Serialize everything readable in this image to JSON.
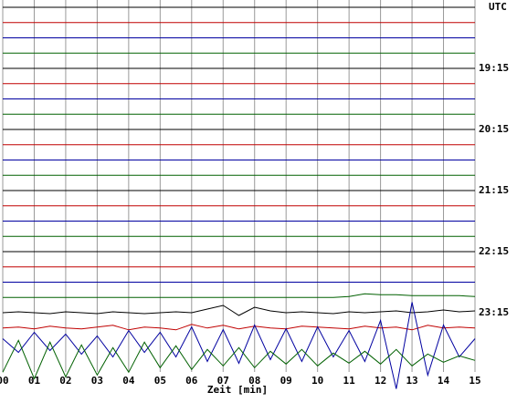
{
  "chart_data": {
    "type": "helicorder",
    "utc_label": "UTC",
    "hour_labels": [
      "19:15",
      "20:15",
      "21:15",
      "22:15",
      "23:15"
    ],
    "x_label": "Zeit [min]",
    "xlim": [
      0,
      15
    ],
    "xticks": [
      {
        "value": 0,
        "label": "00"
      },
      {
        "value": 1,
        "label": "01"
      },
      {
        "value": 2,
        "label": "02"
      },
      {
        "value": 3,
        "label": "03"
      },
      {
        "value": 4,
        "label": "04"
      },
      {
        "value": 5,
        "label": "05"
      },
      {
        "value": 6,
        "label": "06"
      },
      {
        "value": 7,
        "label": "07"
      },
      {
        "value": 8,
        "label": "08"
      },
      {
        "value": 9,
        "label": "09"
      },
      10,
      11,
      12,
      13,
      14,
      15
    ],
    "grid": true,
    "x": [
      0,
      0.5,
      1,
      1.5,
      2,
      2.5,
      3,
      3.5,
      4,
      4.5,
      5,
      5.5,
      6,
      6.5,
      7,
      7.5,
      8,
      8.5,
      9,
      9.5,
      10,
      10.5,
      11,
      11.5,
      12,
      12.5,
      13,
      13.5,
      14,
      14.5,
      15
    ],
    "series": [
      {
        "color": "#000000",
        "values": [
          0,
          0,
          0,
          0,
          0,
          0,
          0,
          0,
          0,
          0,
          0,
          0,
          0,
          0,
          0,
          0,
          0,
          0,
          0,
          0,
          0,
          0,
          0,
          0,
          0,
          0,
          0,
          0,
          0,
          0,
          0
        ]
      },
      {
        "color": "#c00000",
        "values": [
          0,
          0,
          0,
          0,
          0,
          0,
          0,
          0,
          0,
          0,
          0,
          0,
          0,
          0,
          0,
          0,
          0,
          0,
          0,
          0,
          0,
          0,
          0,
          0,
          0,
          0,
          0,
          0,
          0,
          0,
          0
        ]
      },
      {
        "color": "#0000a0",
        "values": [
          0,
          0,
          0,
          0,
          0,
          0,
          0,
          0,
          0,
          0,
          0,
          0,
          0,
          0,
          0,
          0,
          0,
          0,
          0,
          0,
          0,
          0,
          0,
          0,
          0,
          0,
          0,
          0,
          0,
          0,
          0
        ]
      },
      {
        "color": "#006000",
        "values": [
          0,
          0,
          0,
          0,
          0,
          0,
          0,
          0,
          0,
          0,
          0,
          0,
          0,
          0,
          0,
          0,
          0,
          0,
          0,
          0,
          0,
          0,
          0,
          0,
          0,
          0,
          0,
          0,
          0,
          0,
          0
        ]
      },
      {
        "color": "#000000",
        "values": [
          0,
          0,
          0,
          0,
          0,
          0,
          0,
          0,
          0,
          0,
          0,
          0,
          0,
          0,
          0,
          0,
          0,
          0,
          0,
          0,
          0,
          0,
          0,
          0,
          0,
          0,
          0,
          0,
          0,
          0,
          0
        ]
      },
      {
        "color": "#c00000",
        "values": [
          0,
          0,
          0,
          0,
          0,
          0,
          0,
          0,
          0,
          0,
          0,
          0,
          0,
          0,
          0,
          0,
          0,
          0,
          0,
          0,
          0,
          0,
          0,
          0,
          0,
          0,
          0,
          0,
          0,
          0,
          0
        ]
      },
      {
        "color": "#0000a0",
        "values": [
          0,
          0,
          0,
          0,
          0,
          0,
          0,
          0,
          0,
          0,
          0,
          0,
          0,
          0,
          0,
          0,
          0,
          0,
          0,
          0,
          0,
          0,
          0,
          0,
          0,
          0,
          0,
          0,
          0,
          0,
          0
        ]
      },
      {
        "color": "#006000",
        "values": [
          0,
          0,
          0,
          0,
          0,
          0,
          0,
          0,
          0,
          0,
          0,
          0,
          0,
          0,
          0,
          0,
          0,
          0,
          0,
          0,
          0,
          0,
          0,
          0,
          0,
          0,
          0,
          0,
          0,
          0,
          0
        ]
      },
      {
        "color": "#000000",
        "values": [
          0,
          0,
          0,
          0,
          0,
          0,
          0,
          0,
          0,
          0,
          0,
          0,
          0,
          0,
          0,
          0,
          0,
          0,
          0,
          0,
          0,
          0,
          0,
          0,
          0,
          0,
          0,
          0,
          0,
          0,
          0
        ]
      },
      {
        "color": "#c00000",
        "values": [
          0,
          0,
          0,
          0,
          0,
          0,
          0,
          0,
          0,
          0,
          0,
          0,
          0,
          0,
          0,
          0,
          0,
          0,
          0,
          0,
          0,
          0,
          0,
          0,
          0,
          0,
          0,
          0,
          0,
          0,
          0
        ]
      },
      {
        "color": "#0000a0",
        "values": [
          0,
          0,
          0,
          0,
          0,
          0,
          0,
          0,
          0,
          0,
          0,
          0,
          0,
          0,
          0,
          0,
          0,
          0,
          0,
          0,
          0,
          0,
          0,
          0,
          0,
          0,
          0,
          0,
          0,
          0,
          0
        ]
      },
      {
        "color": "#006000",
        "values": [
          0,
          0,
          0,
          0,
          0,
          0,
          0,
          0,
          0,
          0,
          0,
          0,
          0,
          0,
          0,
          0,
          0,
          0,
          0,
          0,
          0,
          0,
          0,
          0,
          0,
          0,
          0,
          0,
          0,
          0,
          0
        ]
      },
      {
        "color": "#000000",
        "values": [
          0,
          0,
          0,
          0,
          0,
          0,
          0,
          0,
          0,
          0,
          0,
          0,
          0,
          0,
          0,
          0,
          0,
          0,
          0,
          0,
          0,
          0,
          0,
          0,
          0,
          0,
          0,
          0,
          0,
          0,
          0
        ]
      },
      {
        "color": "#c00000",
        "values": [
          0,
          0,
          0,
          0,
          0,
          0,
          0,
          0,
          0,
          0,
          0,
          0,
          0,
          0,
          0,
          0,
          0,
          0,
          0,
          0,
          0,
          0,
          0,
          0,
          0,
          0,
          0,
          0,
          0,
          0,
          0
        ]
      },
      {
        "color": "#0000a0",
        "values": [
          0,
          0,
          0,
          0,
          0,
          0,
          0,
          0,
          0,
          0,
          0,
          0,
          0,
          0,
          0,
          0,
          0,
          0,
          0,
          0,
          0,
          0,
          0,
          0,
          0,
          0,
          0,
          0,
          0,
          0,
          0
        ]
      },
      {
        "color": "#006000",
        "values": [
          0,
          0,
          0,
          0,
          0,
          0,
          0,
          0,
          0,
          0,
          0,
          0,
          0,
          0,
          0,
          0,
          0,
          0,
          0,
          0,
          0,
          0,
          0,
          0,
          0,
          0,
          0,
          0,
          0,
          0,
          0
        ]
      },
      {
        "color": "#000000",
        "values": [
          0,
          0,
          0,
          0,
          0,
          0,
          0,
          0,
          0,
          0,
          0,
          0,
          0,
          0,
          0,
          0,
          0,
          0,
          0,
          0,
          0,
          0,
          0,
          0,
          0,
          0,
          0,
          0,
          0,
          0,
          0
        ]
      },
      {
        "color": "#c00000",
        "values": [
          0,
          0,
          0,
          0,
          0,
          0,
          0,
          0,
          0,
          0,
          0,
          0,
          0,
          0,
          0,
          0,
          0,
          0,
          0,
          0,
          0,
          0,
          0,
          0,
          0,
          0,
          0,
          0,
          0,
          0,
          0
        ]
      },
      {
        "color": "#0000a0",
        "values": [
          0,
          0,
          0,
          0,
          0,
          0,
          0,
          0,
          0,
          0,
          0,
          0,
          0,
          0,
          0,
          0,
          0,
          0,
          0,
          0,
          0,
          0,
          0,
          0,
          0,
          0,
          0,
          0,
          0,
          0,
          0
        ]
      },
      {
        "color": "#006000",
        "values": [
          0,
          0,
          0,
          0,
          0,
          0,
          0,
          0,
          0,
          0,
          0,
          0,
          0,
          0,
          0,
          0,
          0,
          0,
          0,
          0,
          0,
          0,
          1,
          4,
          3,
          3,
          2,
          2,
          2,
          2,
          1
        ]
      },
      {
        "color": "#000000",
        "values": [
          0,
          1,
          0,
          -1,
          1,
          0,
          -1,
          1,
          0,
          -1,
          0,
          1,
          0,
          4,
          8,
          -3,
          6,
          2,
          0,
          1,
          0,
          -1,
          1,
          0,
          1,
          2,
          0,
          1,
          3,
          1,
          2
        ]
      },
      {
        "color": "#c00000",
        "values": [
          0,
          1,
          -1,
          2,
          0,
          -1,
          1,
          3,
          -2,
          1,
          0,
          -2,
          4,
          0,
          3,
          -1,
          2,
          0,
          -1,
          2,
          1,
          0,
          -1,
          2,
          0,
          1,
          -2,
          3,
          0,
          1,
          0
        ]
      },
      {
        "color": "#0000a0",
        "values": [
          5,
          -10,
          12,
          -8,
          10,
          -12,
          8,
          -15,
          14,
          -10,
          12,
          -15,
          18,
          -20,
          15,
          -22,
          20,
          -18,
          16,
          -20,
          18,
          -15,
          14,
          -20,
          25,
          -50,
          45,
          -35,
          20,
          -15,
          5
        ]
      },
      {
        "color": "#006000",
        "values": [
          -15,
          20,
          -22,
          18,
          -20,
          15,
          -18,
          12,
          -15,
          18,
          -10,
          14,
          -12,
          10,
          -8,
          12,
          -10,
          8,
          -6,
          10,
          -8,
          6,
          -5,
          8,
          -6,
          10,
          -8,
          5,
          -4,
          3,
          -2
        ]
      }
    ]
  }
}
